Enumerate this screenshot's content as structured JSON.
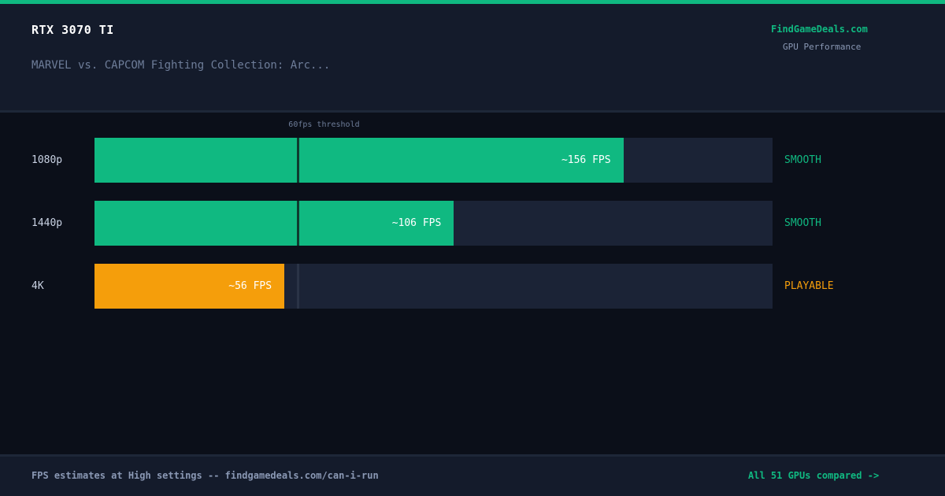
{
  "header": {
    "gpu": "RTX 3070 TI",
    "game": "MARVEL vs. CAPCOM Fighting Collection: Arc...",
    "brand": "FindGameDeals.com",
    "brand_sub": "GPU Performance"
  },
  "chart_data": {
    "type": "bar",
    "orientation": "horizontal",
    "categories": [
      "1080p",
      "1440p",
      "4K"
    ],
    "values": [
      156,
      106,
      56
    ],
    "value_labels": [
      "~156 FPS",
      "~106 FPS",
      "~56 FPS"
    ],
    "status": [
      "SMOOTH",
      "SMOOTH",
      "PLAYABLE"
    ],
    "xlim": [
      0,
      200
    ],
    "threshold": {
      "value": 60,
      "label": "60fps threshold"
    },
    "colors": {
      "SMOOTH": "#10b981",
      "PLAYABLE": "#f59e0b"
    },
    "grid": false
  },
  "footer": {
    "note": "FPS estimates at High settings -- findgamedeals.com/can-i-run",
    "link": "All 51 GPUs compared ->"
  },
  "colors": {
    "accent": "#10b981",
    "warning": "#f59e0b",
    "background": "#0b0f19",
    "panel": "#141b2b"
  }
}
